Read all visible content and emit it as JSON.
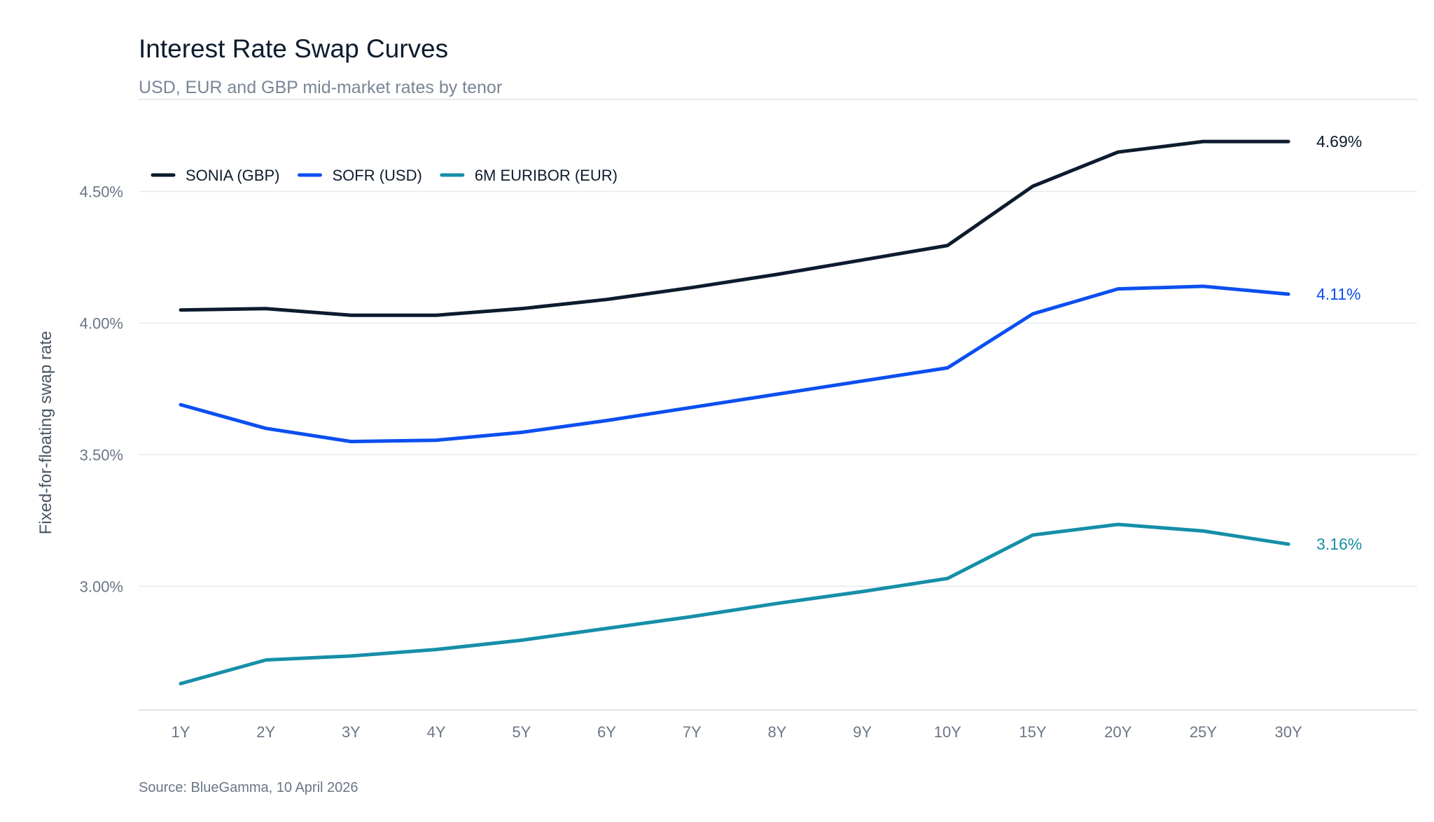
{
  "chart_data": {
    "type": "line",
    "title": "Interest Rate Swap Curves",
    "subtitle": "USD, EUR and GBP mid-market rates by tenor",
    "ylabel": "Fixed-for-floating swap rate",
    "source": "Source: BlueGamma, 10 April 2026",
    "categories": [
      "1Y",
      "2Y",
      "3Y",
      "4Y",
      "5Y",
      "6Y",
      "7Y",
      "8Y",
      "9Y",
      "10Y",
      "15Y",
      "20Y",
      "25Y",
      "30Y"
    ],
    "y_ticks": [
      3.0,
      3.5,
      4.0,
      4.5
    ],
    "y_tick_labels": [
      "3.00%",
      "3.50%",
      "4.00%",
      "4.50%"
    ],
    "ylim": [
      2.53,
      4.85
    ],
    "grid": true,
    "legend_position": "top-left",
    "series": [
      {
        "name": "SONIA (GBP)",
        "color": "#0d1b2e",
        "values": [
          4.05,
          4.055,
          4.03,
          4.03,
          4.055,
          4.09,
          4.135,
          4.185,
          4.24,
          4.295,
          4.52,
          4.65,
          4.69,
          4.69
        ],
        "end_label": "4.69%"
      },
      {
        "name": "SOFR (USD)",
        "color": "#0b4ff0",
        "values": [
          3.69,
          3.6,
          3.55,
          3.555,
          3.585,
          3.63,
          3.68,
          3.73,
          3.78,
          3.83,
          4.035,
          4.13,
          4.14,
          4.11
        ],
        "end_label": "4.11%"
      },
      {
        "name": "6M EURIBOR (EUR)",
        "color": "#168fa8",
        "values": [
          2.63,
          2.72,
          2.735,
          2.76,
          2.795,
          2.84,
          2.885,
          2.935,
          2.98,
          3.03,
          3.195,
          3.235,
          3.21,
          3.16
        ],
        "end_label": "3.16%"
      }
    ]
  }
}
